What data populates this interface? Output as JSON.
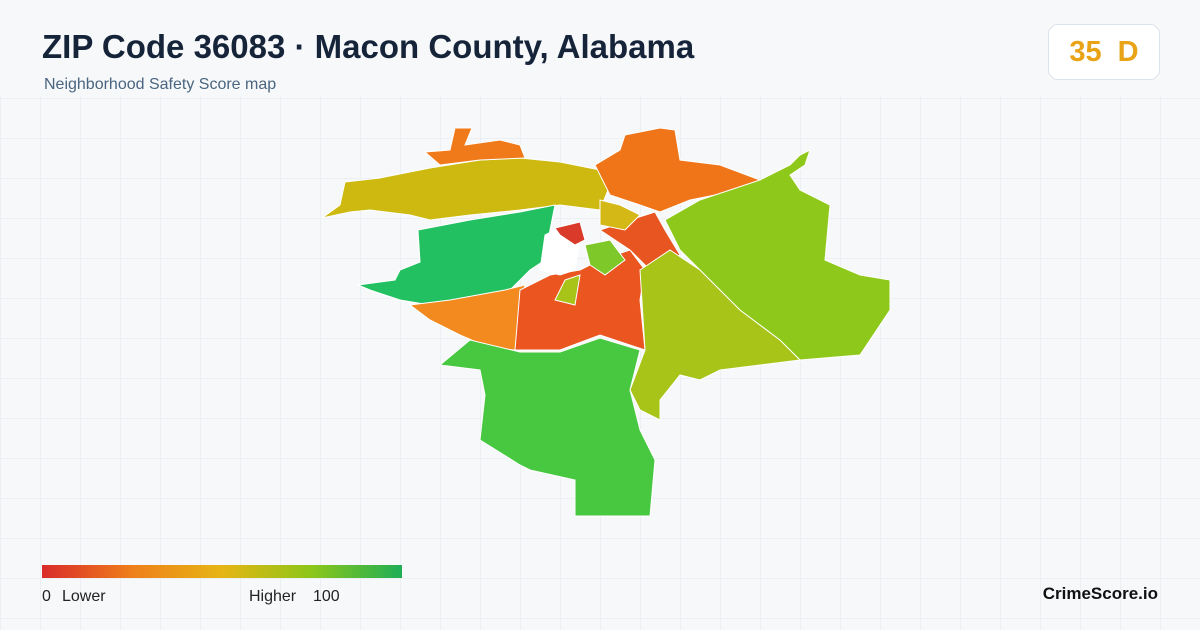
{
  "header": {
    "title": "ZIP Code 36083 · Macon County, Alabama",
    "subtitle": "Neighborhood Safety Score map"
  },
  "score": {
    "value": 35,
    "grade": "D"
  },
  "legend": {
    "min": 0,
    "min_label": "Lower",
    "max_label": "Higher",
    "max": 100
  },
  "brand": "CrimeScore.io"
}
